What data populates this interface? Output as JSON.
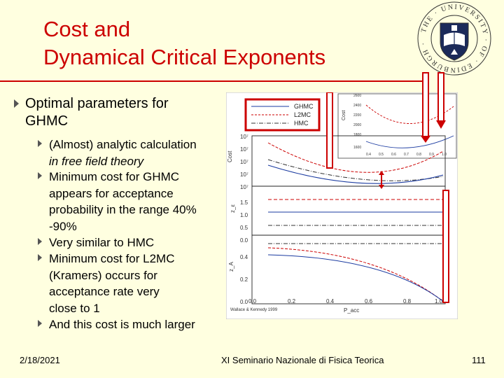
{
  "slide": {
    "title": "Cost and\nDynamical Critical Exponents",
    "bullets": {
      "main": "Optimal parameters for\nGHMC",
      "sub": [
        {
          "text": "(Almost) analytic calculation",
          "italic": "in free field theory"
        },
        {
          "text": "Minimum cost for GHMC\nappears for acceptance\nprobability in the range 40%\n-90%"
        },
        {
          "text": "Very similar to HMC"
        },
        {
          "text": "Minimum cost for L2MC\n(Kramers) occurs for\nacceptance rate very\nclose to 1"
        },
        {
          "text": "And this cost is much larger"
        }
      ]
    },
    "figure": {
      "legend": [
        "GHMC",
        "L2MC",
        "HMC"
      ],
      "y_axis_labels": [
        "Cost",
        "z_ε",
        "z_A"
      ],
      "y_ticks_cost": [
        "10⁷",
        "10⁷",
        "10⁷",
        "10⁷",
        "10⁷"
      ],
      "y_ticks_mid": [
        "1.5",
        "1.0",
        "0.5",
        "0.0"
      ],
      "y_ticks_low": [
        "0.4",
        "0.2",
        "0.0"
      ],
      "x_ticks": [
        "0.0",
        "0.2",
        "0.4",
        "0.6",
        "0.8",
        "1.0"
      ],
      "x_label": "P_acc",
      "inset_y_ticks": [
        "2600",
        "2400",
        "2200",
        "2000",
        "1800",
        "1600"
      ],
      "inset_x_ticks": [
        "0.4",
        "0.5",
        "0.6",
        "0.7",
        "0.8",
        "0.9",
        "1.0"
      ],
      "credit": "Wallace & Kennedy 1999"
    },
    "footer": {
      "date": "2/18/2021",
      "center": "XI Seminario Nazionale di Fisica Teorica",
      "page": "111"
    },
    "seal_text": "THE UNIVERSITY OF EDINBURGH",
    "colors": {
      "title": "#cc0000",
      "background": "#ffffe0",
      "arrow": "#cc0000",
      "ghmc": "#1a3aa0",
      "l2mc": "#cc0000",
      "hmc": "#333333"
    }
  }
}
